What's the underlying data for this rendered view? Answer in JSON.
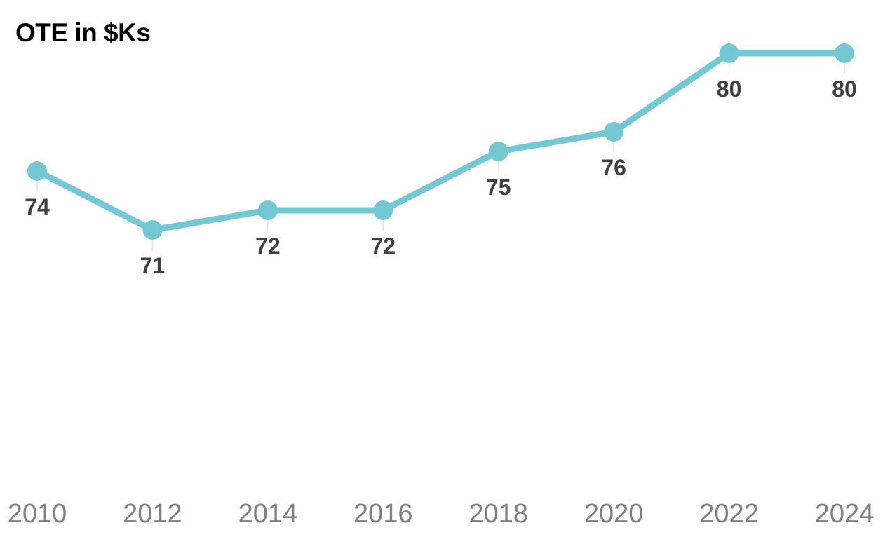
{
  "chart_data": {
    "type": "line",
    "title": "OTE in $Ks",
    "xlabel": "",
    "ylabel": "",
    "x": [
      "2010",
      "2012",
      "2014",
      "2016",
      "2018",
      "2020",
      "2022",
      "2024"
    ],
    "series": [
      {
        "values": [
          74,
          71,
          72,
          72,
          75,
          76,
          80,
          80
        ],
        "color": "#74C8D3"
      }
    ],
    "data_labels": [
      "74",
      "71",
      "72",
      "72",
      "75",
      "76",
      "80",
      "80"
    ],
    "grid": false,
    "legend": "none"
  }
}
